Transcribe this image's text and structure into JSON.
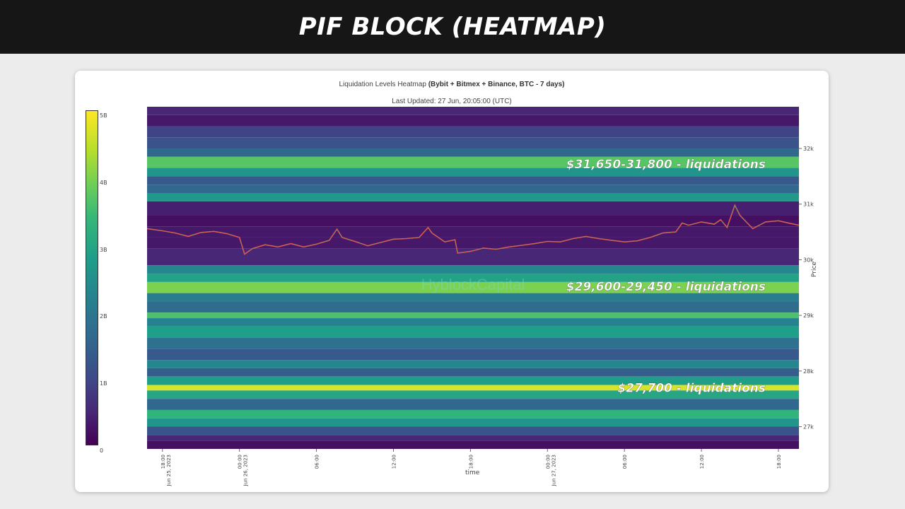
{
  "banner": {
    "title": "PIF BLOCK (HEATMAP)"
  },
  "chart": {
    "title_prefix": "Liquidation Levels Heatmap ",
    "title_bold": "(Bybit + Bitmex + Binance, BTC - 7 days)",
    "last_updated": "Last Updated: 27 Jun, 20:05:00 (UTC)",
    "watermark": "HyblockCapital"
  },
  "colorbar": {
    "ticks": [
      "5B",
      "4B",
      "3B",
      "2B",
      "1B",
      "0"
    ],
    "values": [
      5,
      4,
      3,
      2,
      1,
      0
    ]
  },
  "annotations": [
    {
      "text": "$31,650-31,800 - liquidations",
      "price": 31720
    },
    {
      "text": "$29,600-29,450 - liquidations",
      "price": 29520
    },
    {
      "text": "$27,700 - liquidations",
      "price": 27700
    }
  ],
  "chart_data": {
    "type": "heatmap",
    "xlabel": "time",
    "ylabel": "Price",
    "ylim": [
      26600,
      32750
    ],
    "x_ticks": [
      {
        "label": "18:00",
        "sub": "Jun 25, 2023",
        "hour": 0
      },
      {
        "label": "00:00",
        "sub": "Jun 26, 2023",
        "hour": 6
      },
      {
        "label": "06:00",
        "sub": "",
        "hour": 12
      },
      {
        "label": "12:00",
        "sub": "",
        "hour": 18
      },
      {
        "label": "18:00",
        "sub": "",
        "hour": 24
      },
      {
        "label": "00:00",
        "sub": "Jun 27, 2023",
        "hour": 30
      },
      {
        "label": "06:00",
        "sub": "",
        "hour": 36
      },
      {
        "label": "12:00",
        "sub": "",
        "hour": 42
      },
      {
        "label": "18:00",
        "sub": "",
        "hour": 48
      }
    ],
    "x_range_hours": [
      -1.2,
      49.6
    ],
    "y_ticks": [
      {
        "label": "32k",
        "value": 32000
      },
      {
        "label": "31k",
        "value": 31000
      },
      {
        "label": "30k",
        "value": 30000
      },
      {
        "label": "29k",
        "value": 29000
      },
      {
        "label": "28k",
        "value": 28000
      },
      {
        "label": "27k",
        "value": 27000
      }
    ],
    "heat_bands": [
      {
        "lo": 32600,
        "hi": 32750,
        "v": 0.5
      },
      {
        "lo": 32400,
        "hi": 32600,
        "v": 0.3
      },
      {
        "lo": 32200,
        "hi": 32400,
        "v": 0.9
      },
      {
        "lo": 32000,
        "hi": 32200,
        "v": 1.2
      },
      {
        "lo": 31850,
        "hi": 32000,
        "v": 1.6
      },
      {
        "lo": 31650,
        "hi": 31850,
        "v": 3.7
      },
      {
        "lo": 31500,
        "hi": 31650,
        "v": 2.6
      },
      {
        "lo": 31350,
        "hi": 31500,
        "v": 1.3
      },
      {
        "lo": 31200,
        "hi": 31350,
        "v": 1.6
      },
      {
        "lo": 31050,
        "hi": 31200,
        "v": 2.7
      },
      {
        "lo": 30800,
        "hi": 31050,
        "v": 0.4
      },
      {
        "lo": 30600,
        "hi": 30800,
        "v": 0.2
      },
      {
        "lo": 30400,
        "hi": 30600,
        "v": 0.3
      },
      {
        "lo": 30200,
        "hi": 30400,
        "v": 0.3
      },
      {
        "lo": 29900,
        "hi": 30200,
        "v": 0.5
      },
      {
        "lo": 29750,
        "hi": 29900,
        "v": 2.3
      },
      {
        "lo": 29600,
        "hi": 29750,
        "v": 2.9
      },
      {
        "lo": 29400,
        "hi": 29600,
        "v": 4.0
      },
      {
        "lo": 29250,
        "hi": 29400,
        "v": 2.1
      },
      {
        "lo": 29050,
        "hi": 29250,
        "v": 1.7
      },
      {
        "lo": 28950,
        "hi": 29050,
        "v": 3.6
      },
      {
        "lo": 28800,
        "hi": 28950,
        "v": 2.2
      },
      {
        "lo": 28600,
        "hi": 28800,
        "v": 2.8
      },
      {
        "lo": 28400,
        "hi": 28600,
        "v": 1.8
      },
      {
        "lo": 28200,
        "hi": 28400,
        "v": 1.3
      },
      {
        "lo": 28050,
        "hi": 28200,
        "v": 2.3
      },
      {
        "lo": 27900,
        "hi": 28050,
        "v": 1.4
      },
      {
        "lo": 27750,
        "hi": 27900,
        "v": 2.8
      },
      {
        "lo": 27650,
        "hi": 27750,
        "v": 4.7
      },
      {
        "lo": 27500,
        "hi": 27650,
        "v": 3.0
      },
      {
        "lo": 27300,
        "hi": 27500,
        "v": 1.6
      },
      {
        "lo": 27150,
        "hi": 27300,
        "v": 3.3
      },
      {
        "lo": 27000,
        "hi": 27150,
        "v": 2.6
      },
      {
        "lo": 26850,
        "hi": 27000,
        "v": 1.2
      },
      {
        "lo": 26750,
        "hi": 26850,
        "v": 0.5
      },
      {
        "lo": 26600,
        "hi": 26750,
        "v": 0.2
      }
    ],
    "price_series": {
      "hours": [
        -1.2,
        0,
        1,
        2,
        3,
        4,
        5,
        6,
        6.4,
        7,
        8,
        9,
        10,
        11,
        12,
        13,
        13.6,
        14,
        15,
        16,
        17,
        18,
        19,
        20,
        20.7,
        21,
        22,
        22.8,
        23,
        24,
        25,
        26,
        27,
        28,
        29,
        30,
        31,
        32,
        33,
        34,
        35,
        36,
        37,
        38,
        39,
        40,
        40.5,
        41,
        42,
        43,
        43.5,
        44,
        44.6,
        45,
        46,
        47,
        48,
        49,
        49.6
      ],
      "prices": [
        30560,
        30520,
        30480,
        30420,
        30490,
        30510,
        30470,
        30400,
        30100,
        30200,
        30270,
        30230,
        30290,
        30230,
        30280,
        30350,
        30550,
        30400,
        30330,
        30250,
        30310,
        30370,
        30380,
        30400,
        30580,
        30480,
        30320,
        30360,
        30120,
        30150,
        30210,
        30190,
        30230,
        30260,
        30290,
        30330,
        30320,
        30380,
        30420,
        30380,
        30350,
        30320,
        30340,
        30400,
        30480,
        30500,
        30660,
        30620,
        30680,
        30640,
        30720,
        30580,
        30980,
        30800,
        30560,
        30680,
        30700,
        30650,
        30620
      ]
    }
  }
}
